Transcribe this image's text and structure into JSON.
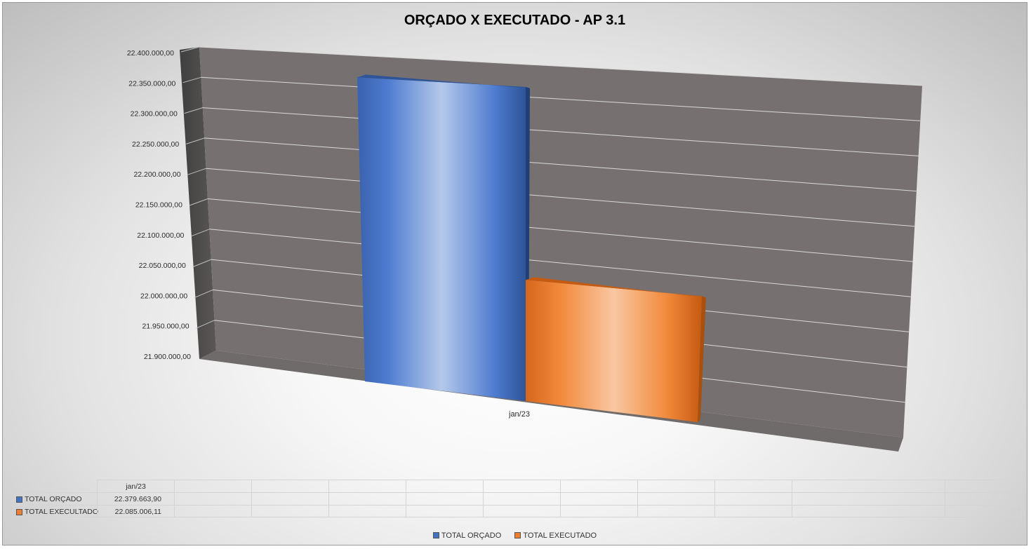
{
  "chart_data": {
    "type": "bar",
    "title": "ORÇADO X EXECUTADO - AP 3.1",
    "categories": [
      "jan/23"
    ],
    "series": [
      {
        "name": "TOTAL ORÇADO",
        "values": [
          22379663.9
        ],
        "display": [
          "22.379.663,90"
        ],
        "color": "#4472c4"
      },
      {
        "name": "TOTAL EXECULTADO",
        "values": [
          22085006.11
        ],
        "display": [
          "22.085.006,11"
        ],
        "color": "#ed7d31"
      }
    ],
    "ylim": [
      21900000,
      22400000
    ],
    "y_ticks": [
      "21.900.000,00",
      "21.950.000,00",
      "22.000.000,00",
      "22.050.000,00",
      "22.100.000,00",
      "22.150.000,00",
      "22.200.000,00",
      "22.250.000,00",
      "22.300.000,00",
      "22.350.000,00",
      "22.400.000,00"
    ],
    "y_tick_values": [
      21900000,
      21950000,
      22000000,
      22050000,
      22100000,
      22150000,
      22200000,
      22250000,
      22300000,
      22350000,
      22400000
    ],
    "xlabel": "",
    "ylabel": "",
    "grid": true,
    "legend": "bottom",
    "wall_color": "#767170",
    "data_table": true
  },
  "legend_items": [
    {
      "name": "TOTAL ORÇADO",
      "color": "#4472c4"
    },
    {
      "name": "TOTAL EXECUTADO",
      "color": "#ed7d31"
    }
  ]
}
